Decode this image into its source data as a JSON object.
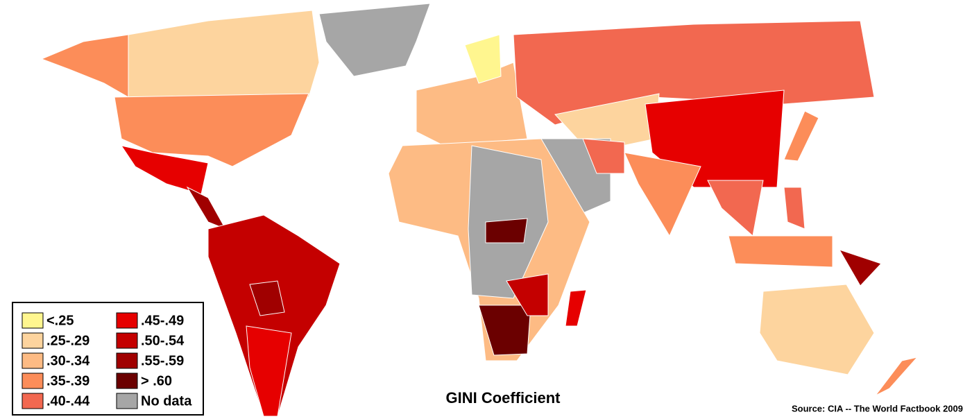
{
  "title": "GINI  Coefficient",
  "source": "Source:  CIA -- The World Factbook 2009",
  "legend": [
    {
      "label": "<.25",
      "color": "#fff68f"
    },
    {
      "label": ".25-.29",
      "color": "#fdd49e"
    },
    {
      "label": ".30-.34",
      "color": "#fdbb84"
    },
    {
      "label": ".35-.39",
      "color": "#fc8d59"
    },
    {
      "label": ".40-.44",
      "color": "#f26850"
    },
    {
      "label": ".45-.49",
      "color": "#e60000"
    },
    {
      "label": ".50-.54",
      "color": "#c40000"
    },
    {
      "label": ".55-.59",
      "color": "#a00000"
    },
    {
      "label": "> .60",
      "color": "#6b0000"
    },
    {
      "label": "No data",
      "color": "#a6a6a6"
    }
  ]
}
